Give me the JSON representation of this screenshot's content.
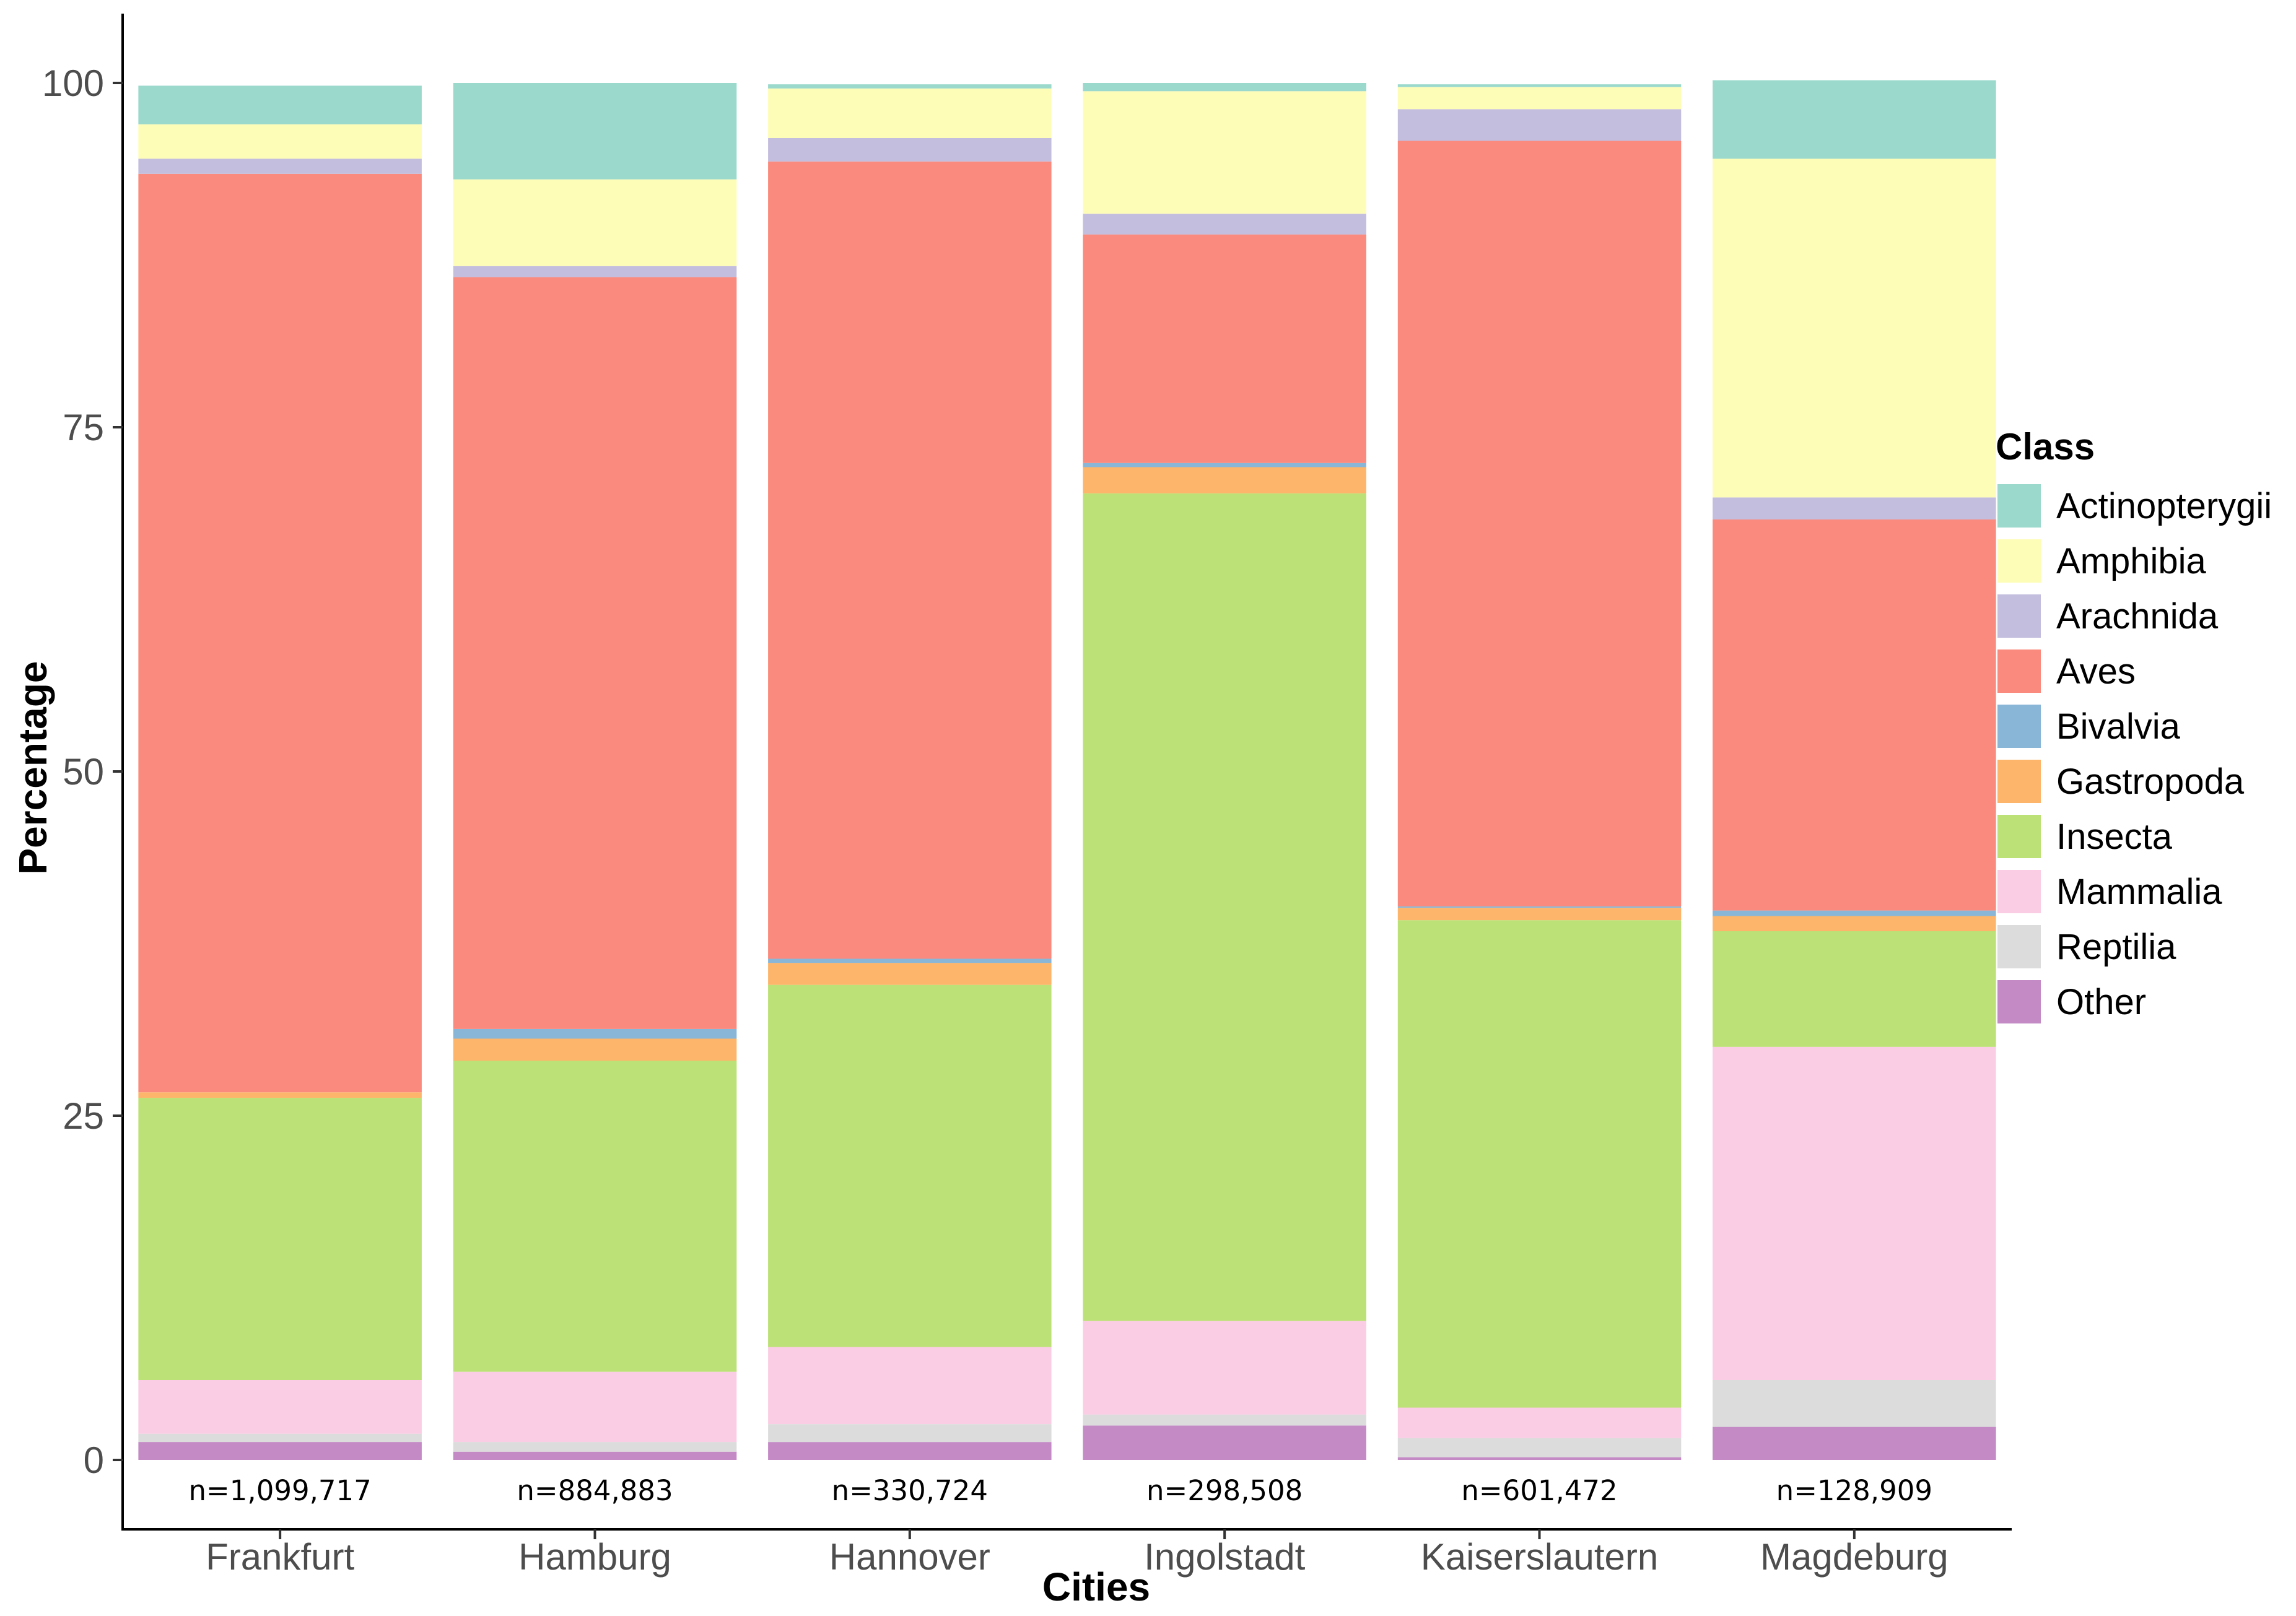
{
  "chart_data": {
    "type": "bar",
    "stacked": true,
    "xlabel": "Cities",
    "ylabel": "Percentage",
    "ylim": [
      0,
      100
    ],
    "yticks": [
      0,
      25,
      50,
      75,
      100
    ],
    "categories": [
      "Frankfurt",
      "Hamburg",
      "Hannover",
      "Ingolstadt",
      "Kaiserslautern",
      "Magdeburg"
    ],
    "sample_sizes": [
      "n=1,099,717",
      "n=884,883",
      "n=330,724",
      "n=298,508",
      "n=601,472",
      "n=128,909"
    ],
    "legend_title": "Class",
    "legend_position": "right",
    "series": [
      {
        "name": "Other",
        "color": "#C38AC5",
        "values": [
          1.3,
          0.6,
          1.3,
          2.5,
          0.2,
          2.4
        ]
      },
      {
        "name": "Reptilia",
        "color": "#DCDCDC",
        "values": [
          0.6,
          0.7,
          1.3,
          0.8,
          1.4,
          3.4
        ]
      },
      {
        "name": "Mammalia",
        "color": "#FBCDE4",
        "values": [
          3.9,
          5.1,
          5.6,
          6.8,
          2.2,
          24.2
        ]
      },
      {
        "name": "Insecta",
        "color": "#BCE176",
        "values": [
          20.5,
          22.6,
          26.3,
          60.1,
          35.4,
          8.4
        ]
      },
      {
        "name": "Gastropoda",
        "color": "#FDB56B",
        "values": [
          0.4,
          1.6,
          1.6,
          1.9,
          0.9,
          1.1
        ]
      },
      {
        "name": "Bivalvia",
        "color": "#89B6D7",
        "values": [
          0.0,
          0.7,
          0.3,
          0.3,
          0.1,
          0.4
        ]
      },
      {
        "name": "Aves",
        "color": "#FA8A7D",
        "values": [
          66.7,
          54.6,
          57.9,
          16.6,
          55.6,
          28.4
        ]
      },
      {
        "name": "Arachnida",
        "color": "#C4BEDE",
        "values": [
          1.1,
          0.8,
          1.7,
          1.5,
          2.3,
          1.6
        ]
      },
      {
        "name": "Amphibia",
        "color": "#FEFDB8",
        "values": [
          2.5,
          6.3,
          3.6,
          8.9,
          1.6,
          24.6
        ]
      },
      {
        "name": "Actinopterygii",
        "color": "#9AD9CC",
        "values": [
          2.8,
          7.0,
          0.3,
          0.6,
          0.2,
          5.7
        ]
      }
    ]
  }
}
